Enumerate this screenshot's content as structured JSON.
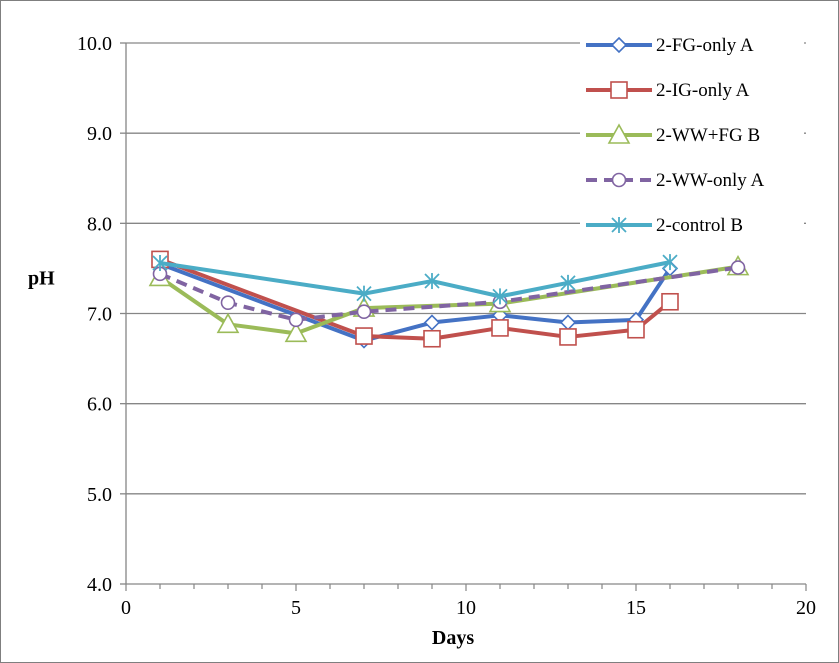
{
  "chart_data": {
    "type": "line",
    "xlabel": "Days",
    "ylabel": "pH",
    "xlim": [
      0,
      20
    ],
    "ylim": [
      4.0,
      10.0
    ],
    "xticks": [
      0,
      5,
      10,
      15,
      20
    ],
    "yticks": [
      4.0,
      5.0,
      6.0,
      7.0,
      8.0,
      9.0,
      10.0
    ],
    "ytick_format_decimals": 1,
    "grid": "horizontal",
    "legend_position": "top-right",
    "series": [
      {
        "name": "2-FG-only A",
        "color": "#4472c4",
        "marker": "diamond",
        "dash": "solid",
        "x": [
          1,
          7,
          9,
          11,
          13,
          15,
          16
        ],
        "y": [
          7.55,
          6.7,
          6.9,
          6.98,
          6.9,
          6.93,
          7.5
        ]
      },
      {
        "name": "2-IG-only A",
        "color": "#c0504d",
        "marker": "square",
        "dash": "solid",
        "x": [
          1,
          7,
          9,
          11,
          13,
          15,
          16
        ],
        "y": [
          7.6,
          6.75,
          6.72,
          6.84,
          6.74,
          6.82,
          7.13
        ]
      },
      {
        "name": "2-WW+FG B",
        "color": "#9bbb59",
        "marker": "triangle",
        "dash": "solid",
        "x": [
          1,
          3,
          5,
          7,
          11,
          18
        ],
        "y": [
          7.4,
          6.88,
          6.78,
          7.06,
          7.11,
          7.52
        ]
      },
      {
        "name": "2-WW-only A",
        "color": "#8064a2",
        "marker": "circle",
        "dash": "dashed",
        "x": [
          1,
          3,
          5,
          7,
          11,
          18
        ],
        "y": [
          7.44,
          7.12,
          6.93,
          7.02,
          7.13,
          7.51
        ]
      },
      {
        "name": "2-control B",
        "color": "#4bacc6",
        "marker": "star",
        "dash": "solid",
        "x": [
          1,
          7,
          9,
          11,
          13,
          16
        ],
        "y": [
          7.56,
          7.22,
          7.36,
          7.19,
          7.34,
          7.57
        ]
      }
    ]
  }
}
